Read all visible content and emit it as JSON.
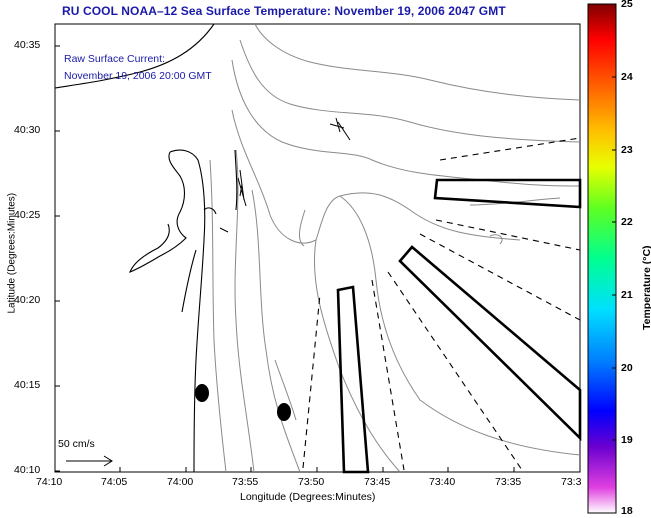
{
  "title": "RU COOL  NOAA–12  Sea Surface Temperature:  November 19, 2006 2047 GMT",
  "legend": {
    "line1": "Raw Surface Current:",
    "line2": "November 19, 2006 20:00 GMT"
  },
  "axes": {
    "xlabel": "Longitude (Degrees:Minutes)",
    "ylabel": "Latitude (Degrees:Minutes)",
    "xticks": [
      "74:10",
      "74:05",
      "74:00",
      "73:55",
      "73:50",
      "73:45",
      "73:40",
      "73:35",
      "73:3"
    ],
    "yticks": [
      "40:35",
      "40:30",
      "40:25",
      "40:20",
      "40:15",
      "40:10"
    ]
  },
  "colorbar": {
    "label": "Temperature (°C)",
    "ticks": [
      "25",
      "24",
      "23",
      "22",
      "21",
      "20",
      "19",
      "18"
    ],
    "min": 18,
    "max": 25
  },
  "scale": {
    "label": "50 cm/s"
  }
}
